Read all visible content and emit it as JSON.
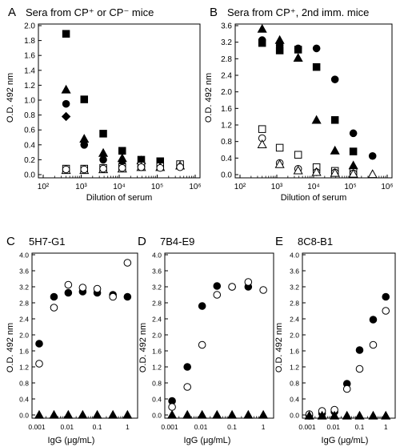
{
  "chart_data": [
    {
      "id": "A",
      "type": "scatter",
      "panel_letter": "A",
      "title": "Sera from CP⁺ or CP⁻ mice",
      "xlabel": "Dilution of serum",
      "ylabel": "O.D. 492 nm",
      "xscale": "log",
      "xlim": [
        100,
        1000000
      ],
      "ylim": [
        0,
        2.0
      ],
      "xticks": [
        {
          "value": 100,
          "label": "10²"
        },
        {
          "value": 1000,
          "label": "10³"
        },
        {
          "value": 10000,
          "label": "10⁴"
        },
        {
          "value": 100000,
          "label": "10⁵"
        },
        {
          "value": 1000000,
          "label": "10⁶"
        }
      ],
      "yticks": [
        {
          "value": 0,
          "label": "0.0"
        },
        {
          "value": 0.2,
          "label": "0.2"
        },
        {
          "value": 0.4,
          "label": "0.4"
        },
        {
          "value": 0.6,
          "label": "0.6"
        },
        {
          "value": 0.8,
          "label": "0.8"
        },
        {
          "value": 1.0,
          "label": "1.0"
        },
        {
          "value": 1.2,
          "label": "1.2"
        },
        {
          "value": 1.4,
          "label": "1.4"
        },
        {
          "value": 1.6,
          "label": "1.6"
        },
        {
          "value": 1.8,
          "label": "1.8"
        },
        {
          "value": 2.0,
          "label": "2.0"
        }
      ],
      "series": [
        {
          "marker": "square-filled",
          "points": [
            [
              400,
              1.89
            ],
            [
              1200,
              1.01
            ],
            [
              3800,
              0.55
            ],
            [
              12000,
              0.32
            ],
            [
              38000,
              0.2
            ],
            [
              120000,
              0.18
            ]
          ]
        },
        {
          "marker": "triangle-filled",
          "points": [
            [
              400,
              1.14
            ],
            [
              1200,
              0.48
            ],
            [
              3800,
              0.29
            ],
            [
              12000,
              0.22
            ],
            [
              38000,
              0.19
            ]
          ]
        },
        {
          "marker": "circle-filled",
          "points": [
            [
              400,
              0.95
            ],
            [
              1200,
              0.4
            ],
            [
              3800,
              0.2
            ],
            [
              12000,
              0.14
            ],
            [
              38000,
              0.11
            ]
          ]
        },
        {
          "marker": "diamond-filled",
          "points": [
            [
              400,
              0.78
            ]
          ]
        },
        {
          "marker": "square-open",
          "points": [
            [
              400,
              0.08
            ],
            [
              1200,
              0.08
            ],
            [
              3800,
              0.09
            ],
            [
              12000,
              0.1
            ],
            [
              38000,
              0.12
            ],
            [
              120000,
              0.11
            ],
            [
              400000,
              0.14
            ]
          ]
        },
        {
          "marker": "triangle-open",
          "points": [
            [
              400,
              0.06
            ],
            [
              1200,
              0.06
            ],
            [
              3800,
              0.07
            ],
            [
              12000,
              0.08
            ],
            [
              38000,
              0.1
            ],
            [
              120000,
              0.1
            ],
            [
              400000,
              0.12
            ]
          ]
        },
        {
          "marker": "circle-open",
          "points": [
            [
              400,
              0.07
            ],
            [
              1200,
              0.07
            ],
            [
              3800,
              0.08
            ],
            [
              12000,
              0.09
            ],
            [
              38000,
              0.1
            ],
            [
              120000,
              0.09
            ],
            [
              400000,
              0.1
            ]
          ]
        }
      ]
    },
    {
      "id": "B",
      "type": "scatter",
      "panel_letter": "B",
      "title": "Sera from CP⁺, 2nd imm. mice",
      "xlabel": "Dilution of serum",
      "ylabel": "O.D. 492 nm",
      "xscale": "log",
      "xlim": [
        100,
        1000000
      ],
      "ylim": [
        0,
        3.6
      ],
      "xticks": [
        {
          "value": 100,
          "label": "10²"
        },
        {
          "value": 1000,
          "label": "10³"
        },
        {
          "value": 10000,
          "label": "10⁴"
        },
        {
          "value": 100000,
          "label": "10⁵"
        },
        {
          "value": 1000000,
          "label": "10⁶"
        }
      ],
      "yticks": [
        {
          "value": 0,
          "label": "0.0"
        },
        {
          "value": 0.4,
          "label": "0.4"
        },
        {
          "value": 0.8,
          "label": "0.8"
        },
        {
          "value": 1.2,
          "label": "1.2"
        },
        {
          "value": 1.6,
          "label": "1.6"
        },
        {
          "value": 2.0,
          "label": "2.0"
        },
        {
          "value": 2.4,
          "label": "2.4"
        },
        {
          "value": 2.8,
          "label": "2.8"
        },
        {
          "value": 3.2,
          "label": "3.2"
        },
        {
          "value": 3.6,
          "label": "3.6"
        }
      ],
      "series": [
        {
          "marker": "triangle-filled",
          "points": [
            [
              400,
              3.52
            ],
            [
              1200,
              3.25
            ],
            [
              3800,
              2.82
            ],
            [
              12000,
              1.32
            ],
            [
              38000,
              0.58
            ],
            [
              120000,
              0.22
            ]
          ]
        },
        {
          "marker": "circle-filled",
          "points": [
            [
              400,
              3.25
            ],
            [
              1200,
              3.12
            ],
            [
              3800,
              3.05
            ],
            [
              12000,
              3.05
            ],
            [
              38000,
              2.3
            ],
            [
              120000,
              1.0
            ],
            [
              400000,
              0.45
            ]
          ]
        },
        {
          "marker": "square-filled",
          "points": [
            [
              400,
              3.18
            ],
            [
              1200,
              3.0
            ],
            [
              3800,
              3.02
            ],
            [
              12000,
              2.6
            ],
            [
              38000,
              1.32
            ],
            [
              120000,
              0.56
            ]
          ]
        },
        {
          "marker": "square-open",
          "points": [
            [
              400,
              1.1
            ],
            [
              1200,
              0.65
            ],
            [
              3800,
              0.48
            ],
            [
              12000,
              0.18
            ],
            [
              38000,
              0.09
            ],
            [
              120000,
              0.06
            ]
          ]
        },
        {
          "marker": "circle-open",
          "points": [
            [
              400,
              0.88
            ],
            [
              1200,
              0.28
            ],
            [
              3800,
              0.14
            ],
            [
              12000,
              0.06
            ],
            [
              38000,
              0.05
            ],
            [
              120000,
              0.03
            ]
          ]
        },
        {
          "marker": "triangle-open",
          "points": [
            [
              400,
              0.73
            ],
            [
              1200,
              0.25
            ],
            [
              3800,
              0.1
            ],
            [
              12000,
              0.06
            ],
            [
              38000,
              0.04
            ],
            [
              120000,
              0.02
            ],
            [
              400000,
              0.01
            ]
          ]
        }
      ]
    },
    {
      "id": "C",
      "type": "scatter",
      "panel_letter": "C",
      "title": "5H7-G1",
      "xlabel": "IgG (μg/mL)",
      "ylabel": "O.D. 492 nm",
      "xscale": "log",
      "xlim": [
        0.001,
        1.5
      ],
      "ylim": [
        0,
        4.0
      ],
      "xticks": [
        {
          "value": 0.001,
          "label": "0.001"
        },
        {
          "value": 0.01,
          "label": "0.01"
        },
        {
          "value": 0.1,
          "label": "0.1"
        },
        {
          "value": 1,
          "label": "1"
        }
      ],
      "yticks": [
        {
          "value": 0,
          "label": "0.0"
        },
        {
          "value": 0.4,
          "label": "0.4"
        },
        {
          "value": 0.8,
          "label": "0.8"
        },
        {
          "value": 1.2,
          "label": "1.2"
        },
        {
          "value": 1.6,
          "label": "1.6"
        },
        {
          "value": 2.0,
          "label": "2.0"
        },
        {
          "value": 2.4,
          "label": "2.4"
        },
        {
          "value": 2.8,
          "label": "2.8"
        },
        {
          "value": 3.2,
          "label": "3.2"
        },
        {
          "value": 3.6,
          "label": "3.6"
        },
        {
          "value": 4.0,
          "label": "4.0"
        }
      ],
      "series": [
        {
          "marker": "circle-filled",
          "points": [
            [
              0.0012,
              1.78
            ],
            [
              0.0037,
              2.95
            ],
            [
              0.011,
              3.05
            ],
            [
              0.033,
              3.08
            ],
            [
              0.1,
              3.05
            ],
            [
              0.33,
              3.0
            ],
            [
              1.0,
              2.95
            ]
          ]
        },
        {
          "marker": "circle-open",
          "points": [
            [
              0.0012,
              1.28
            ],
            [
              0.0037,
              2.68
            ],
            [
              0.011,
              3.25
            ],
            [
              0.033,
              3.18
            ],
            [
              0.1,
              3.15
            ],
            [
              0.33,
              2.95
            ],
            [
              1.0,
              3.8
            ]
          ]
        },
        {
          "marker": "triangle-filled",
          "points": [
            [
              0.0012,
              0.0
            ],
            [
              0.0037,
              0.0
            ],
            [
              0.011,
              0.0
            ],
            [
              0.033,
              0.0
            ],
            [
              0.1,
              0.0
            ],
            [
              0.33,
              0.0
            ],
            [
              1.0,
              0.0
            ]
          ]
        }
      ]
    },
    {
      "id": "D",
      "type": "scatter",
      "panel_letter": "D",
      "title": "7B4-E9",
      "xlabel": "IgG (μg/mL)",
      "ylabel": "O.D. 492 nm",
      "xscale": "log",
      "xlim": [
        0.001,
        1.5
      ],
      "ylim": [
        0,
        4.0
      ],
      "xticks": [
        {
          "value": 0.001,
          "label": "0.001"
        },
        {
          "value": 0.01,
          "label": "0.01"
        },
        {
          "value": 0.1,
          "label": "0.1"
        },
        {
          "value": 1,
          "label": "1"
        }
      ],
      "yticks": [
        {
          "value": 0,
          "label": "0.0"
        },
        {
          "value": 0.4,
          "label": "0.4"
        },
        {
          "value": 0.8,
          "label": "0.8"
        },
        {
          "value": 1.2,
          "label": "1.2"
        },
        {
          "value": 1.6,
          "label": "1.6"
        },
        {
          "value": 2.0,
          "label": "2.0"
        },
        {
          "value": 2.4,
          "label": "2.4"
        },
        {
          "value": 2.8,
          "label": "2.8"
        },
        {
          "value": 3.2,
          "label": "3.2"
        },
        {
          "value": 3.6,
          "label": "3.6"
        },
        {
          "value": 4.0,
          "label": "4.0"
        }
      ],
      "series": [
        {
          "marker": "circle-filled",
          "points": [
            [
              0.0012,
              0.35
            ],
            [
              0.0037,
              1.2
            ],
            [
              0.011,
              2.72
            ],
            [
              0.033,
              3.22
            ],
            [
              0.1,
              3.2
            ],
            [
              0.33,
              3.2
            ]
          ]
        },
        {
          "marker": "circle-open",
          "points": [
            [
              0.0012,
              0.2
            ],
            [
              0.0037,
              0.7
            ],
            [
              0.011,
              1.75
            ],
            [
              0.033,
              3.0
            ],
            [
              0.1,
              3.2
            ],
            [
              0.33,
              3.32
            ],
            [
              1.0,
              3.12
            ]
          ]
        },
        {
          "marker": "triangle-filled",
          "points": [
            [
              0.0012,
              0.0
            ],
            [
              0.0037,
              0.0
            ],
            [
              0.011,
              0.0
            ],
            [
              0.033,
              0.0
            ],
            [
              0.1,
              0.0
            ],
            [
              0.33,
              0.0
            ],
            [
              1.0,
              0.0
            ]
          ]
        }
      ]
    },
    {
      "id": "E",
      "type": "scatter",
      "panel_letter": "E",
      "title": "8C8-B1",
      "xlabel": "IgG (μg/mL)",
      "ylabel": "O.D. 492 nm",
      "xscale": "log",
      "xlim": [
        0.001,
        1.5
      ],
      "ylim": [
        0,
        4.0
      ],
      "xticks": [
        {
          "value": 0.001,
          "label": "0.001"
        },
        {
          "value": 0.01,
          "label": "0.01"
        },
        {
          "value": 0.1,
          "label": "0.1"
        },
        {
          "value": 1,
          "label": "1"
        }
      ],
      "yticks": [
        {
          "value": 0,
          "label": "0.0"
        },
        {
          "value": 0.4,
          "label": "0.4"
        },
        {
          "value": 0.8,
          "label": "0.8"
        },
        {
          "value": 1.2,
          "label": "1.2"
        },
        {
          "value": 1.6,
          "label": "1.6"
        },
        {
          "value": 2.0,
          "label": "2.0"
        },
        {
          "value": 2.4,
          "label": "2.4"
        },
        {
          "value": 2.8,
          "label": "2.8"
        },
        {
          "value": 3.2,
          "label": "3.2"
        },
        {
          "value": 3.6,
          "label": "3.6"
        },
        {
          "value": 4.0,
          "label": "4.0"
        }
      ],
      "series": [
        {
          "marker": "circle-filled",
          "points": [
            [
              0.0012,
              -0.02
            ],
            [
              0.0037,
              0.04
            ],
            [
              0.011,
              0.08
            ],
            [
              0.033,
              0.78
            ],
            [
              0.1,
              1.62
            ],
            [
              0.33,
              2.38
            ],
            [
              1.0,
              2.95
            ]
          ]
        },
        {
          "marker": "circle-open",
          "points": [
            [
              0.0012,
              0.02
            ],
            [
              0.0037,
              0.1
            ],
            [
              0.011,
              0.13
            ],
            [
              0.033,
              0.65
            ],
            [
              0.1,
              1.15
            ],
            [
              0.33,
              1.75
            ],
            [
              1.0,
              2.6
            ]
          ]
        },
        {
          "marker": "triangle-filled",
          "points": [
            [
              0.0012,
              -0.02
            ],
            [
              0.0037,
              -0.02
            ],
            [
              0.011,
              -0.02
            ],
            [
              0.033,
              -0.02
            ],
            [
              0.1,
              -0.02
            ],
            [
              0.33,
              -0.02
            ],
            [
              1.0,
              -0.02
            ]
          ]
        }
      ]
    }
  ]
}
